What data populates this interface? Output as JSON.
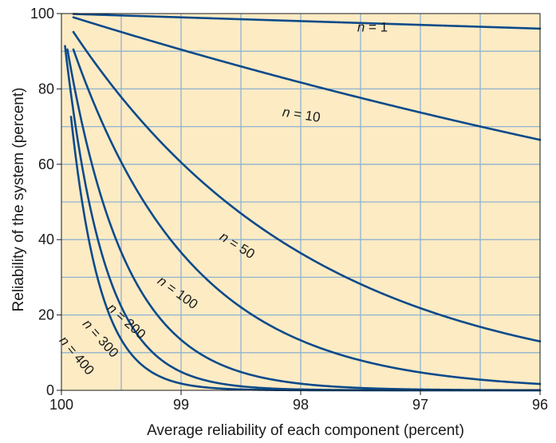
{
  "chart_data": {
    "type": "line",
    "title": "",
    "xlabel": "Average reliability of each component (percent)",
    "ylabel": "Reliability of the system (percent)",
    "xlim": [
      100,
      96
    ],
    "ylim": [
      0,
      100
    ],
    "x_reversed": true,
    "xticks": [
      "100",
      "99",
      "98",
      "97",
      "96"
    ],
    "yticks": [
      "0",
      "20",
      "40",
      "60",
      "80",
      "100"
    ],
    "grid": true,
    "background_color": "#fdebc4",
    "grid_color": "#8fb3cf",
    "line_color": "#0b4a8a",
    "series": [
      {
        "name": "n = 1",
        "formula": "y = 100*(x/100)^n",
        "n": 1,
        "x_start": 99.9,
        "x_end": 96,
        "label": {
          "prefix": "n",
          "suffix": " = 1",
          "x": 97.4,
          "y": 95.2,
          "angle": 0
        }
      },
      {
        "name": "n = 10",
        "formula": "y = 100*(x/100)^n",
        "n": 10,
        "x_start": 99.9,
        "x_end": 96,
        "label": {
          "prefix": "n",
          "suffix": " = 10",
          "x": 98.0,
          "y": 72.0,
          "angle": 9
        }
      },
      {
        "name": "n = 50",
        "formula": "y = 100*(x/100)^n",
        "n": 50,
        "x_start": 99.9,
        "x_end": 96,
        "label": {
          "prefix": "n",
          "suffix": " = 50",
          "x": 98.55,
          "y": 37.5,
          "angle": 32
        }
      },
      {
        "name": "n = 100",
        "formula": "y = 100*(x/100)^n",
        "n": 100,
        "x_start": 99.9,
        "x_end": 96,
        "label": {
          "prefix": "n",
          "suffix": " = 100",
          "x": 99.05,
          "y": 25.0,
          "angle": 36
        }
      },
      {
        "name": "n = 200",
        "formula": "y = 100*(x/100)^n",
        "n": 200,
        "x_start": 99.95,
        "x_end": 96,
        "label": {
          "prefix": "n",
          "suffix": " = 200",
          "x": 99.48,
          "y": 17.5,
          "angle": 42
        }
      },
      {
        "name": "n = 300",
        "formula": "y = 100*(x/100)^n",
        "n": 300,
        "x_start": 99.97,
        "x_end": 96,
        "label": {
          "prefix": "n",
          "suffix": " = 300",
          "x": 99.7,
          "y": 13.0,
          "angle": 48
        }
      },
      {
        "name": "n = 400",
        "formula": "y = 100*(x/100)^n",
        "n": 400,
        "x_start": 99.92,
        "x_end": 96,
        "label": {
          "prefix": "n",
          "suffix": " = 400",
          "x": 99.9,
          "y": 8.5,
          "angle": 50
        }
      }
    ]
  }
}
